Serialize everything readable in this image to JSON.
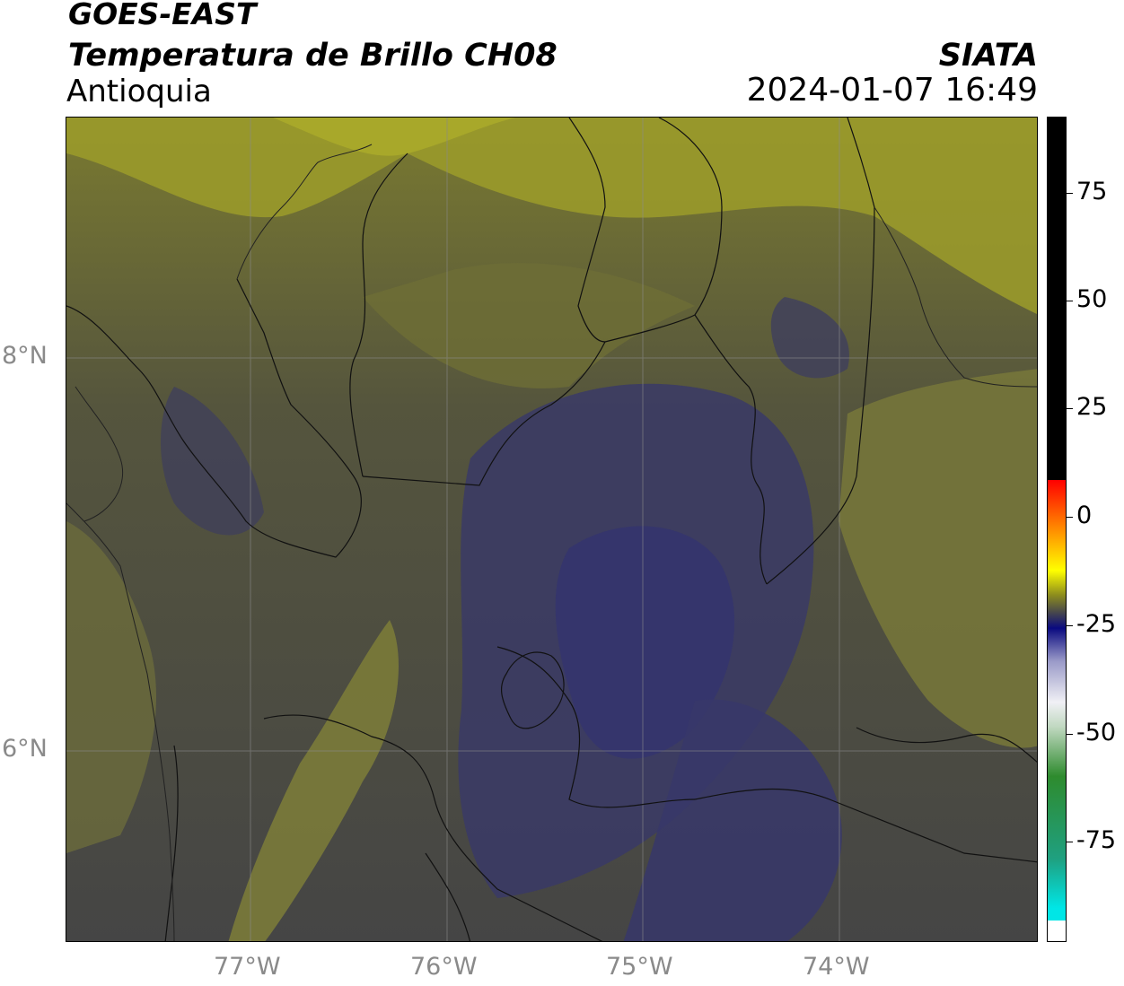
{
  "header": {
    "title_line1": "GOES-EAST",
    "title_line2": "Temperatura de Brillo CH08",
    "brand": "SIATA",
    "region": "Antioquia",
    "timestamp": "2024-01-07 16:49"
  },
  "map": {
    "lat_labels": [
      "8°N",
      "6°N"
    ],
    "lon_labels": [
      "77°W",
      "76°W",
      "75°W",
      "74°W"
    ]
  },
  "colorbar": {
    "tick_labels": [
      "75",
      "50",
      "25",
      "0",
      "-25",
      "-50",
      "-75"
    ],
    "colors": {
      "warm_max": "#000000",
      "red": "#ff0000",
      "orange": "#ff8c00",
      "yellow": "#ffff00",
      "olive": "#8c8c1e",
      "gray": "#4a4a4a",
      "navy": "#0a0a80",
      "light": "#f0f0f5",
      "green": "#2e8b2e",
      "cyan": "#00e6e6"
    }
  }
}
